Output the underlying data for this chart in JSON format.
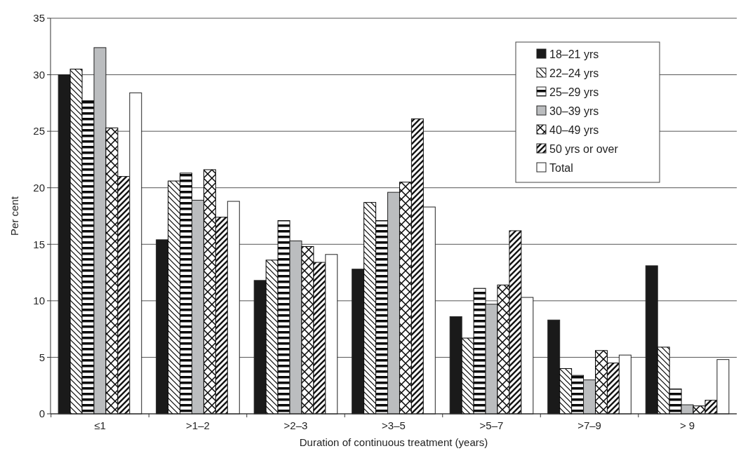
{
  "chart_data": {
    "type": "bar",
    "xlabel": "Duration of continuous treatment (years)",
    "ylabel": "Per cent",
    "categories": [
      "≤1",
      ">1–2",
      ">2–3",
      ">3–5",
      ">5–7",
      ">7–9",
      "> 9"
    ],
    "ylim": [
      0,
      35
    ],
    "yticks": [
      0,
      5,
      10,
      15,
      20,
      25,
      30,
      35
    ],
    "grid": "y",
    "legend": "top right",
    "series": [
      {
        "name": "18–21 yrs",
        "color": "#1a1a1a",
        "values": [
          30,
          15.4,
          11.8,
          12.8,
          8.6,
          8.3,
          13.1
        ]
      },
      {
        "name": "22–24 yrs",
        "color": "#000000",
        "values": [
          30.5,
          20.6,
          13.6,
          18.7,
          6.7,
          4.0,
          5.9
        ]
      },
      {
        "name": "25–29 yrs",
        "color": "#0a0a0a",
        "values": [
          27.7,
          21.3,
          17.1,
          17.1,
          11.1,
          3.4,
          2.2
        ]
      },
      {
        "name": "30–39 yrs",
        "color": "#bbbdbf",
        "values": [
          32.4,
          18.9,
          15.3,
          19.6,
          9.7,
          3.0,
          0.8
        ]
      },
      {
        "name": "40–49 yrs",
        "color": "#050505",
        "values": [
          25.3,
          21.6,
          14.8,
          20.5,
          11.4,
          5.6,
          0.7
        ]
      },
      {
        "name": "50 yrs or over",
        "color": "#141414",
        "values": [
          21,
          17.4,
          13.4,
          26.1,
          16.2,
          4.5,
          1.2
        ]
      },
      {
        "name": "Total",
        "color": "#ffffff",
        "values": [
          28.4,
          18.8,
          14.1,
          18.3,
          10.3,
          5.2,
          4.8
        ]
      }
    ]
  }
}
